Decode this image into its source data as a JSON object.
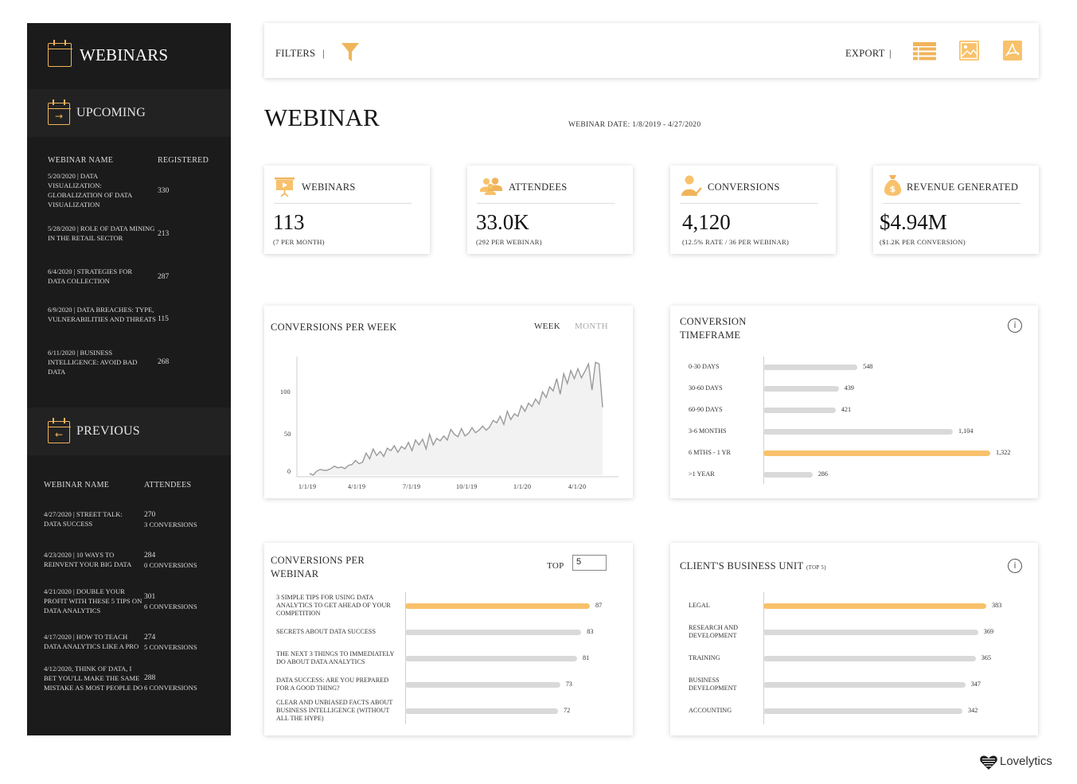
{
  "sidebar": {
    "title": "WEBINARS",
    "upcoming": {
      "title": "UPCOMING",
      "col_name": "WEBINAR NAME",
      "col_value": "REGISTERED",
      "rows": [
        {
          "name": "5/20/2020 | DATA VISUALIZATION: GLOBALIZATION OF DATA VISUALIZATION",
          "value": "330"
        },
        {
          "name": "5/28/2020 | ROLE OF DATA MINING IN THE RETAIL SECTOR",
          "value": "213"
        },
        {
          "name": "6/4/2020 | STRATEGIES FOR DATA COLLECTION",
          "value": "287"
        },
        {
          "name": "6/9/2020 | DATA BREACHES: TYPE, VULNERABILITIES AND THREATS",
          "value": "115"
        },
        {
          "name": "6/11/2020 | BUSINESS INTELLIGENCE: AVOID BAD DATA",
          "value": "268"
        }
      ]
    },
    "previous": {
      "title": "PREVIOUS",
      "col_name": "WEBINAR NAME",
      "col_value": "ATTENDEES",
      "rows": [
        {
          "name": "4/27/2020 | STREET TALK: DATA SUCCESS",
          "attendees": "270",
          "conversions": "3 CONVERSIONS"
        },
        {
          "name": "4/23/2020 | 10 WAYS TO REINVENT YOUR BIG DATA",
          "attendees": "284",
          "conversions": "0 CONVERSIONS"
        },
        {
          "name": "4/21/2020 | DOUBLE YOUR PROFIT WITH THESE 5 TIPS ON DATA ANALYTICS",
          "attendees": "301",
          "conversions": "6 CONVERSIONS"
        },
        {
          "name": "4/17/2020 | HOW TO TEACH DATA ANALYTICS LIKE A PRO",
          "attendees": "274",
          "conversions": "5 CONVERSIONS"
        },
        {
          "name": "4/12/2020, THINK OF DATA, I BET YOU'LL MAKE THE SAME MISTAKE AS MOST PEOPLE DO",
          "attendees": "288",
          "conversions": "6 CONVERSIONS"
        }
      ]
    }
  },
  "toolbar": {
    "filters_label": "FILTERS",
    "export_label": "EXPORT",
    "separator": "|"
  },
  "page": {
    "title": "WEBINAR",
    "date_range": "WEBINAR DATE: 1/8/2019 - 4/27/2020"
  },
  "kpis": [
    {
      "label": "WEBINARS",
      "value": "113",
      "sub": "(7 PER MONTH)",
      "icon": "presentation-icon"
    },
    {
      "label": "ATTENDEES",
      "value": "33.0K",
      "sub": "(292 PER WEBINAR)",
      "icon": "people-icon"
    },
    {
      "label": "CONVERSIONS",
      "value": "4,120",
      "sub": "(12.5% RATE / 36 PER WEBINAR)",
      "icon": "user-check-icon"
    },
    {
      "label": "REVENUE GENERATED",
      "value": "$4.94M",
      "sub": "($1.2K PER CONVERSION)",
      "icon": "money-bag-icon"
    }
  ],
  "colors": {
    "accent": "#f0b45a",
    "bar_highlight": "#f8c16a",
    "bar_default": "#d9d9d9",
    "sidebar_bg": "#1b1b1b",
    "line": "#9a9a9a",
    "area": "#f2f2f2"
  },
  "logo_text": "Lovelytics",
  "chart_data": [
    {
      "type": "line",
      "title": "CONVERSIONS PER WEEK",
      "toggle": {
        "week": "WEEK",
        "month": "MONTH",
        "selected": "WEEK"
      },
      "y_ticks": [
        "0",
        "50",
        "100"
      ],
      "x_ticks": [
        "1/1/19",
        "4/1/19",
        "7/1/19",
        "10/1/19",
        "1/1/20",
        "4/1/20"
      ],
      "ylim": [
        0,
        145
      ],
      "x_start": "2019-01-08",
      "x_end": "2020-04-27",
      "values": [
        2,
        0,
        5,
        7,
        6,
        6,
        8,
        11,
        9,
        10,
        8,
        12,
        13,
        18,
        14,
        16,
        27,
        20,
        32,
        24,
        29,
        23,
        33,
        30,
        36,
        28,
        35,
        32,
        40,
        30,
        43,
        37,
        44,
        32,
        50,
        37,
        45,
        42,
        48,
        43,
        56,
        50,
        47,
        57,
        48,
        51,
        58,
        52,
        55,
        60,
        55,
        59,
        67,
        64,
        72,
        62,
        78,
        68,
        75,
        72,
        85,
        78,
        88,
        84,
        93,
        87,
        102,
        95,
        108,
        103,
        118,
        99,
        124,
        112,
        128,
        118,
        130,
        119,
        127,
        136,
        104,
        138,
        136,
        83
      ]
    },
    {
      "type": "bar",
      "title": "CONVERSION TIMEFRAME",
      "categories": [
        "0-30 DAYS",
        "30-60 DAYS",
        "60-90 DAYS",
        "3-6 MONTHS",
        "6 MTHS - 1 YR",
        ">1 YEAR"
      ],
      "values": [
        548,
        439,
        421,
        1104,
        1322,
        286
      ],
      "value_labels": [
        "548",
        "439",
        "421",
        "1,104",
        "1,322",
        "286"
      ],
      "highlight": 4
    },
    {
      "type": "bar",
      "title": "CONVERSIONS PER WEBINAR",
      "top_label": "TOP",
      "top_value": "5",
      "categories": [
        "3 SIMPLE TIPS FOR USING DATA ANALYTICS TO GET AHEAD OF YOUR COMPETITION",
        "SECRETS ABOUT DATA SUCCESS",
        "THE NEXT 3 THINGS TO IMMEDIATELY DO ABOUT DATA ANALYTICS",
        "DATA SUCCESS: ARE YOU PREPARED FOR A GOOD THING?",
        "CLEAR AND UNBIASED FACTS ABOUT BUSINESS INTELLIGENCE (WITHOUT ALL THE HYPE)"
      ],
      "values": [
        87,
        83,
        81,
        73,
        72
      ],
      "value_labels": [
        "87",
        "83",
        "81",
        "73",
        "72"
      ],
      "highlight": 0
    },
    {
      "type": "bar",
      "title": "CLIENT'S BUSINESS UNIT",
      "subtitle": "(TOP 5)",
      "categories": [
        "LEGAL",
        "RESEARCH AND DEVELOPMENT",
        "TRAINING",
        "BUSINESS DEVELOPMENT",
        "ACCOUNTING"
      ],
      "values": [
        383,
        369,
        365,
        347,
        342
      ],
      "value_labels": [
        "383",
        "369",
        "365",
        "347",
        "342"
      ],
      "highlight": 0
    }
  ]
}
